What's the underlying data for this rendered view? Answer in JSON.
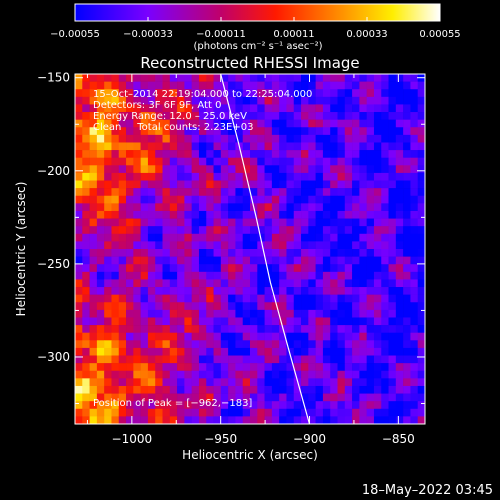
{
  "chart_data": {
    "type": "heatmap",
    "title": "Reconstructed RHESSI Image",
    "xlabel": "Heliocentric X (arcsec)",
    "ylabel": "Heliocentric Y (arcsec)",
    "xlim": [
      -1032,
      -835
    ],
    "ylim": [
      -336,
      -148
    ],
    "x_ticks": [
      -1000,
      -950,
      -900,
      -850
    ],
    "y_ticks": [
      -150,
      -200,
      -250,
      -300
    ],
    "x_tick_labels": [
      "−1000",
      "−950",
      "−900",
      "−850"
    ],
    "y_tick_labels": [
      "−150",
      "−200",
      "−250",
      "−300"
    ],
    "colorbar": {
      "range": [
        -0.00055,
        0.00055
      ],
      "tick_values": [
        -0.00055,
        -0.00033,
        -0.00011,
        0.00011,
        0.00033,
        0.00055
      ],
      "tick_labels": [
        "−0.00055",
        "−0.00033",
        "−0.00011",
        "0.00011",
        "0.00033",
        "0.00055"
      ],
      "unit_label": "(photons cm⁻² s⁻¹ asec⁻²)",
      "colors": [
        "#0000ff",
        "#7a00ff",
        "#c0006a",
        "#ff1a00",
        "#ff8a00",
        "#ffee00",
        "#ffffff"
      ]
    },
    "annotations": [
      "15–Oct–2014 22:19:04.000 to 22:25:04.000",
      "Detectors: 3F 6F 9F, Att 0",
      "Energy Range: 12.0 – 25.0 keV",
      "Clean     Total counts: 2.23E+03"
    ],
    "peak_label": "Position of Peak = [−962,−183]",
    "limb_curve": [
      [
        -950,
        -148
      ],
      [
        -940,
        -185
      ],
      [
        -930,
        -225
      ],
      [
        -922,
        -260
      ],
      [
        -912,
        -295
      ],
      [
        -900,
        -336
      ]
    ],
    "grid_size": [
      48,
      46
    ]
  },
  "footer": {
    "timestamp": "18–May–2022 03:45"
  }
}
